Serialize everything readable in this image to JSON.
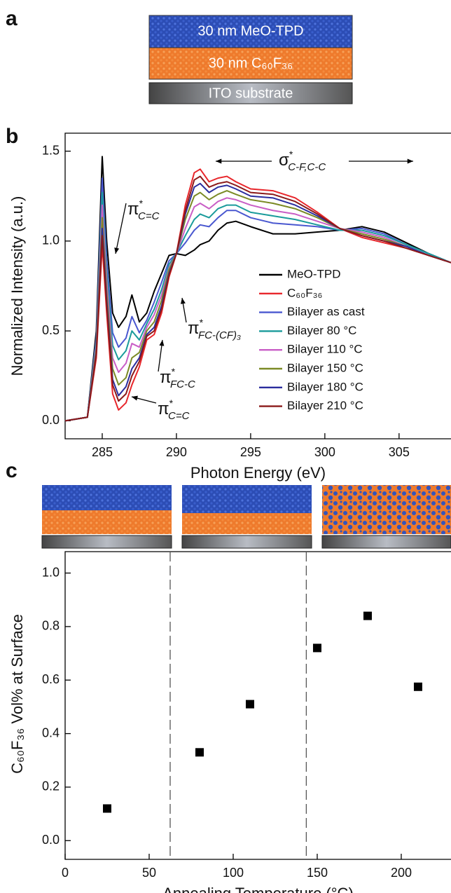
{
  "panel_labels": [
    "a",
    "b",
    "c"
  ],
  "panel_a": {
    "layers": [
      "30 nm MeO-TPD",
      "30 nm C₆₀F₃₆",
      "ITO substrate"
    ]
  },
  "chart_data": [
    {
      "type": "line",
      "x_label": "Photon Energy (eV)",
      "y_label": "Normalized Intensity (a.u.)",
      "xlim": [
        282.5,
        308.5
      ],
      "ylim": [
        -0.1,
        1.6
      ],
      "xticks": [
        285,
        290,
        295,
        300,
        305
      ],
      "yticks": [
        {
          "value": 0,
          "label": "0.0"
        },
        0.5,
        {
          "value": 1,
          "label": "1.0"
        },
        1.5
      ],
      "legend": "lower right",
      "x": [
        282.5,
        284.0,
        284.6,
        285.0,
        285.3,
        285.7,
        286.1,
        286.6,
        287.0,
        287.5,
        288.0,
        288.5,
        289.0,
        289.5,
        290.0,
        290.6,
        291.2,
        291.6,
        292.2,
        292.8,
        293.4,
        294.0,
        295.0,
        296.5,
        298.0,
        299.5,
        301.0,
        302.5,
        304.0,
        305.5,
        307.0,
        308.5
      ],
      "series": [
        {
          "name": "MeO-TPD",
          "color": "#000000",
          "values": [
            0,
            0.02,
            0.5,
            1.47,
            1.0,
            0.6,
            0.52,
            0.58,
            0.7,
            0.55,
            0.6,
            0.72,
            0.82,
            0.92,
            0.93,
            0.92,
            0.95,
            0.98,
            1.0,
            1.06,
            1.1,
            1.11,
            1.08,
            1.04,
            1.04,
            1.05,
            1.06,
            1.08,
            1.05,
            0.99,
            0.93,
            0.88
          ]
        },
        {
          "name": "C₆₀F₃₆",
          "color": "#e8262b",
          "values": [
            0,
            0.02,
            0.35,
            0.98,
            0.6,
            0.15,
            0.06,
            0.1,
            0.2,
            0.3,
            0.45,
            0.48,
            0.6,
            0.8,
            0.93,
            1.2,
            1.38,
            1.4,
            1.33,
            1.35,
            1.36,
            1.33,
            1.29,
            1.28,
            1.24,
            1.16,
            1.07,
            1.02,
            0.99,
            0.96,
            0.92,
            0.88
          ]
        },
        {
          "name": "Bilayer as cast",
          "color": "#4a58d0",
          "values": [
            0,
            0.02,
            0.46,
            1.35,
            0.9,
            0.49,
            0.41,
            0.46,
            0.58,
            0.49,
            0.56,
            0.66,
            0.77,
            0.89,
            0.93,
            0.99,
            1.06,
            1.09,
            1.08,
            1.13,
            1.17,
            1.17,
            1.13,
            1.1,
            1.09,
            1.08,
            1.06,
            1.07,
            1.04,
            0.98,
            0.93,
            0.88
          ]
        },
        {
          "name": "Bilayer 80 °C",
          "color": "#1a9b9b",
          "values": [
            0,
            0.02,
            0.44,
            1.27,
            0.84,
            0.42,
            0.34,
            0.39,
            0.5,
            0.45,
            0.54,
            0.62,
            0.73,
            0.87,
            0.93,
            1.03,
            1.12,
            1.15,
            1.13,
            1.18,
            1.2,
            1.2,
            1.16,
            1.14,
            1.12,
            1.09,
            1.06,
            1.06,
            1.03,
            0.98,
            0.93,
            0.88
          ]
        },
        {
          "name": "Bilayer 110 °C",
          "color": "#c95ec6",
          "values": [
            0,
            0.02,
            0.42,
            1.2,
            0.78,
            0.35,
            0.27,
            0.32,
            0.43,
            0.41,
            0.52,
            0.59,
            0.7,
            0.85,
            0.93,
            1.07,
            1.19,
            1.21,
            1.18,
            1.22,
            1.24,
            1.23,
            1.2,
            1.17,
            1.15,
            1.11,
            1.07,
            1.05,
            1.02,
            0.97,
            0.92,
            0.88
          ]
        },
        {
          "name": "Bilayer 150 °C",
          "color": "#7b8a25",
          "values": [
            0,
            0.02,
            0.4,
            1.13,
            0.72,
            0.29,
            0.2,
            0.24,
            0.35,
            0.38,
            0.5,
            0.55,
            0.67,
            0.84,
            0.93,
            1.12,
            1.25,
            1.27,
            1.23,
            1.26,
            1.28,
            1.26,
            1.23,
            1.21,
            1.18,
            1.13,
            1.07,
            1.04,
            1.01,
            0.97,
            0.92,
            0.88
          ]
        },
        {
          "name": "Bilayer 180 °C",
          "color": "#2a2d9e",
          "values": [
            0,
            0.02,
            0.38,
            1.07,
            0.67,
            0.23,
            0.14,
            0.19,
            0.29,
            0.35,
            0.48,
            0.52,
            0.64,
            0.82,
            0.93,
            1.15,
            1.3,
            1.32,
            1.27,
            1.3,
            1.31,
            1.29,
            1.25,
            1.24,
            1.2,
            1.14,
            1.07,
            1.03,
            1.0,
            0.97,
            0.92,
            0.88
          ]
        },
        {
          "name": "Bilayer 210 °C",
          "color": "#8b1a1a",
          "values": [
            0,
            0.02,
            0.37,
            1.03,
            0.64,
            0.2,
            0.11,
            0.15,
            0.25,
            0.33,
            0.47,
            0.5,
            0.62,
            0.81,
            0.93,
            1.17,
            1.34,
            1.36,
            1.3,
            1.32,
            1.33,
            1.31,
            1.27,
            1.26,
            1.22,
            1.15,
            1.07,
            1.03,
            1.0,
            0.96,
            0.92,
            0.88
          ]
        }
      ],
      "annotations": [
        {
          "symbol": "π",
          "sup": "*",
          "sub": "C=C"
        },
        {
          "symbol": "π",
          "sup": "*",
          "sub": "FC-(CF)₃"
        },
        {
          "symbol": "π",
          "sup": "*",
          "sub": "FC-C"
        },
        {
          "symbol": "π",
          "sup": "*",
          "sub": "C=C"
        },
        {
          "symbol": "σ",
          "sup": "*",
          "sub": "C-F,C-C"
        }
      ]
    },
    {
      "type": "scatter",
      "x_label": "Annealing Temperature (°C)",
      "y_label": "C₆₀F₃₆ Vol% at Surface",
      "xlim": [
        0,
        229.6
      ],
      "ylim": [
        -0.07,
        1.08
      ],
      "xticks": [
        0,
        50,
        100,
        150,
        200
      ],
      "yticks": [
        {
          "value": 0,
          "label": "0.0"
        },
        0.2,
        0.4,
        0.6,
        0.8,
        {
          "value": 1,
          "label": "1.0"
        }
      ],
      "color": "#000000",
      "dividers": [
        62.5,
        143.5
      ],
      "x": [
        25,
        80,
        110,
        150,
        180,
        210
      ],
      "values": [
        0.12,
        0.33,
        0.51,
        0.72,
        0.84,
        0.575
      ]
    }
  ]
}
